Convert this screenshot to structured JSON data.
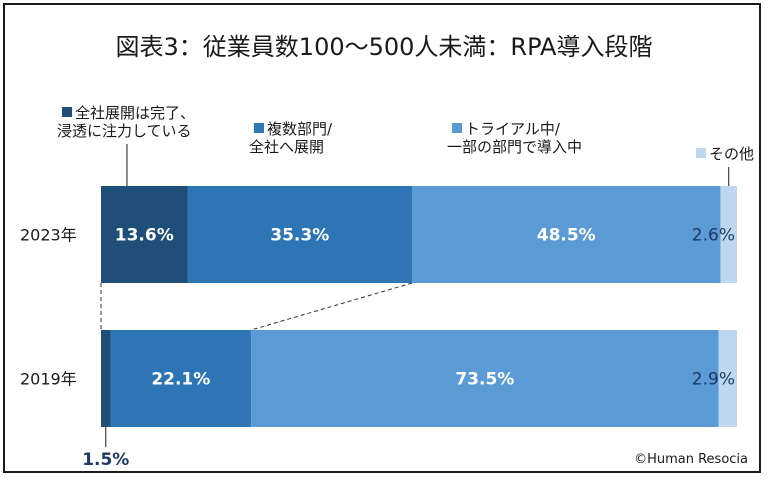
{
  "chart_data": {
    "type": "bar",
    "orientation": "horizontal",
    "stacked": true,
    "percent": true,
    "title": "図表3：従業員数100～500人未満：RPA導入段階",
    "categories": [
      "2023年",
      "2019年"
    ],
    "series": [
      {
        "name": "全社展開は完了、\n浸透に注力している",
        "values": [
          13.6,
          1.5
        ],
        "labels": [
          "13.6%",
          "1.5%"
        ],
        "color": "#1f4e79"
      },
      {
        "name": "複数部門/\n全社へ展開",
        "values": [
          35.3,
          22.1
        ],
        "labels": [
          "35.3%",
          "22.1%"
        ],
        "color": "#2e75b6"
      },
      {
        "name": "トライアル中/\n一部の部門で導入中",
        "values": [
          48.5,
          73.5
        ],
        "labels": [
          "48.5%",
          "73.5%"
        ],
        "color": "#5b9bd5"
      },
      {
        "name": "その他",
        "values": [
          2.6,
          2.9
        ],
        "labels": [
          "2.6%",
          "2.9%"
        ],
        "color": "#bdd7ee"
      }
    ],
    "xlim": [
      0,
      100
    ],
    "grid": false,
    "legend": "top",
    "source": "©Human Resocia"
  }
}
